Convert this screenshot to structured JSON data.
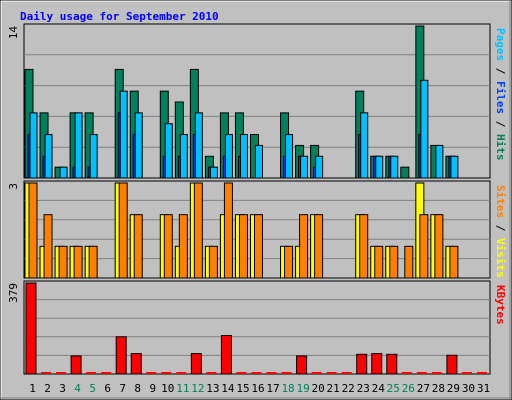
{
  "title": "Daily usage for September 2010",
  "colors": {
    "background": "#c0c0c0",
    "frame": "#000000",
    "title": "#0000ff",
    "hits": "#00805c",
    "files": "#0040ff",
    "pages": "#00c0ff",
    "sites": "#ff8000",
    "visits": "#ffff00",
    "kbytes": "#ff0000",
    "weekend_day": "#00805c",
    "weekday": "#000000"
  },
  "chart_data": [
    {
      "type": "bar",
      "panel": "top",
      "ymax_label": "14",
      "ymax": 14,
      "legend": [
        {
          "text": "Pages",
          "color": "#00c0ff"
        },
        {
          "text": " / ",
          "color": "#000000"
        },
        {
          "text": "Files",
          "color": "#0040ff"
        },
        {
          "text": " / ",
          "color": "#000000"
        },
        {
          "text": "Hits",
          "color": "#00805c"
        }
      ],
      "categories": [
        "1",
        "2",
        "3",
        "4",
        "5",
        "6",
        "7",
        "8",
        "9",
        "10",
        "11",
        "12",
        "13",
        "14",
        "15",
        "16",
        "17",
        "18",
        "19",
        "20",
        "21",
        "22",
        "23",
        "24",
        "25",
        "26",
        "27",
        "28",
        "29",
        "30",
        "31"
      ],
      "series": [
        {
          "name": "Hits",
          "values": [
            10,
            6,
            1,
            6,
            6,
            0,
            10,
            8,
            0,
            8,
            7,
            10,
            2,
            6,
            6,
            4,
            0,
            6,
            3,
            3,
            0,
            0,
            8,
            2,
            2,
            1,
            14,
            3,
            2,
            0,
            0
          ]
        },
        {
          "name": "Files",
          "values": [
            4,
            2,
            0,
            1,
            1,
            0,
            6,
            4,
            0,
            2,
            2,
            4,
            1,
            2,
            2,
            0,
            0,
            2,
            2,
            1,
            0,
            0,
            4,
            2,
            2,
            0,
            4,
            0,
            2,
            0,
            0
          ]
        },
        {
          "name": "Pages",
          "values": [
            6,
            4,
            1,
            6,
            4,
            0,
            8,
            6,
            0,
            5,
            4,
            6,
            1,
            4,
            4,
            3,
            0,
            4,
            2,
            2,
            0,
            0,
            6,
            2,
            2,
            0,
            9,
            3,
            2,
            0,
            0
          ]
        }
      ]
    },
    {
      "type": "bar",
      "panel": "middle",
      "ymax_label": "3",
      "ymax": 3,
      "legend": [
        {
          "text": "Sites",
          "color": "#ff8000"
        },
        {
          "text": " / ",
          "color": "#000000"
        },
        {
          "text": "Visits",
          "color": "#ffff00"
        }
      ],
      "categories": [
        "1",
        "2",
        "3",
        "4",
        "5",
        "6",
        "7",
        "8",
        "9",
        "10",
        "11",
        "12",
        "13",
        "14",
        "15",
        "16",
        "17",
        "18",
        "19",
        "20",
        "21",
        "22",
        "23",
        "24",
        "25",
        "26",
        "27",
        "28",
        "29",
        "30",
        "31"
      ],
      "series": [
        {
          "name": "Visits",
          "values": [
            3,
            1,
            1,
            1,
            1,
            0,
            3,
            2,
            0,
            2,
            1,
            3,
            1,
            2,
            2,
            2,
            0,
            1,
            1,
            2,
            0,
            0,
            2,
            1,
            1,
            0,
            3,
            2,
            1,
            0,
            0
          ]
        },
        {
          "name": "Sites",
          "values": [
            3,
            2,
            1,
            1,
            1,
            0,
            3,
            2,
            0,
            2,
            2,
            3,
            1,
            3,
            2,
            2,
            0,
            1,
            2,
            2,
            0,
            0,
            2,
            1,
            1,
            1,
            2,
            2,
            1,
            0,
            0
          ]
        }
      ]
    },
    {
      "type": "bar",
      "panel": "bottom",
      "ymax_label": "379",
      "ymax": 379,
      "legend": [
        {
          "text": "KBytes",
          "color": "#ff0000"
        }
      ],
      "categories": [
        "1",
        "2",
        "3",
        "4",
        "5",
        "6",
        "7",
        "8",
        "9",
        "10",
        "11",
        "12",
        "13",
        "14",
        "15",
        "16",
        "17",
        "18",
        "19",
        "20",
        "21",
        "22",
        "23",
        "24",
        "25",
        "26",
        "27",
        "28",
        "29",
        "30",
        "31"
      ],
      "series": [
        {
          "name": "KBytes",
          "values": [
            379,
            0,
            0,
            75,
            0,
            0,
            155,
            85,
            0,
            0,
            0,
            85,
            0,
            160,
            0,
            0,
            0,
            0,
            75,
            0,
            0,
            0,
            82,
            85,
            82,
            0,
            0,
            0,
            78,
            0,
            0
          ]
        }
      ]
    }
  ],
  "x_axis": {
    "labels": [
      "1",
      "2",
      "3",
      "4",
      "5",
      "6",
      "7",
      "8",
      "9",
      "10",
      "11",
      "12",
      "13",
      "14",
      "15",
      "16",
      "17",
      "18",
      "19",
      "20",
      "21",
      "22",
      "23",
      "24",
      "25",
      "26",
      "27",
      "28",
      "29",
      "30",
      "31"
    ],
    "weekend": [
      "4",
      "5",
      "11",
      "12",
      "18",
      "19",
      "25",
      "26"
    ]
  }
}
